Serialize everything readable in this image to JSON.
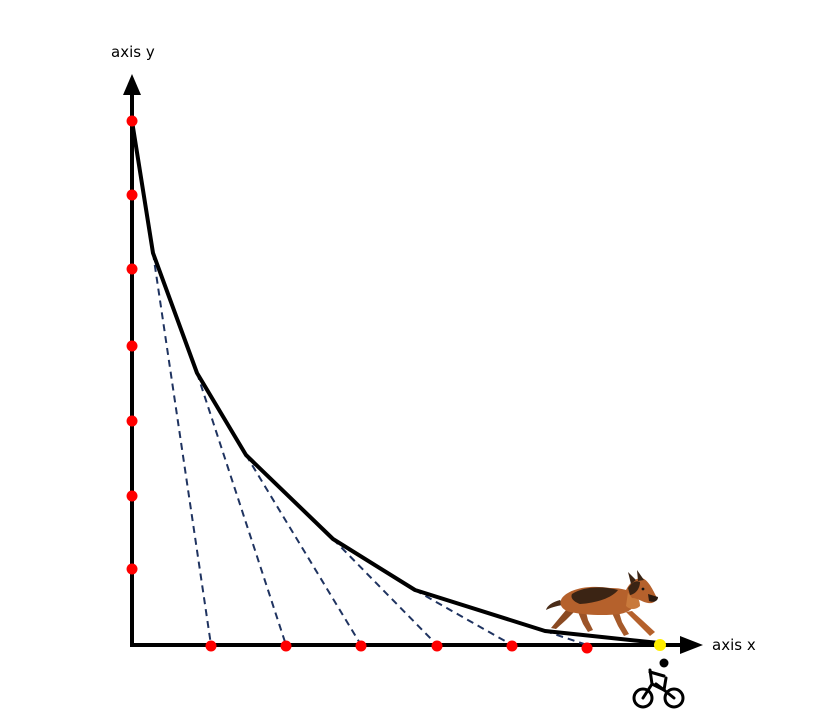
{
  "labels": {
    "y_axis": "axis y",
    "x_axis": "axis x"
  },
  "colors": {
    "axis": "#000000",
    "pursuit_curve": "#000000",
    "sight_line": "#1f3360",
    "dog_position": "#ff0000",
    "cyclist_position": "#ff0000",
    "cyclist_final": "#ffee00",
    "dog_fur_dark": "#3b2414",
    "dog_fur_tan": "#b5612c"
  },
  "icons": {
    "dog": "dog-icon",
    "cyclist": "bicycle-rider-icon"
  },
  "scene": {
    "dog_marker_count": 7,
    "cyclist_marker_count": 7,
    "sight_line_count": 6
  }
}
